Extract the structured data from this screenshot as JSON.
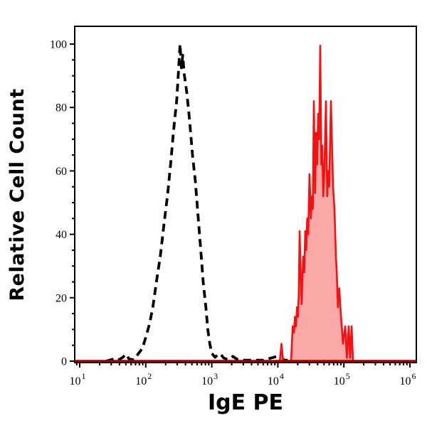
{
  "figure": {
    "background": "#ffffff"
  },
  "chart_data": {
    "type": "area",
    "subtype": "flow-cytometry-overlay-histogram",
    "title": "",
    "xlabel": "IgE PE",
    "ylabel": "Relative Cell Count",
    "x_scale": "log",
    "xlim": [
      10,
      1000000
    ],
    "ylim": [
      0,
      100
    ],
    "grid": false,
    "legend": "none",
    "x_axis": {
      "tick_base": "10",
      "tick_exponents": [
        1,
        2,
        3,
        4,
        5,
        6
      ],
      "minor_tick_multiples": [
        2,
        3,
        4,
        5,
        6,
        7,
        8,
        9
      ]
    },
    "y_axis": {
      "major_ticks": [
        0,
        20,
        40,
        60,
        80,
        100
      ],
      "minor_tick_step": 5
    },
    "colors": {
      "axis": "#000000",
      "black_curve": "#000000",
      "red_curve": "#f80f0f",
      "red_fill": "#fba8a8",
      "baseline": "#9b0000",
      "background": "#ffffff"
    },
    "series": [
      {
        "name": "black-dashed-histogram",
        "style": "dashed",
        "fill": false,
        "points": [
          [
            25,
            0
          ],
          [
            33,
            0.7
          ],
          [
            38,
            0.3
          ],
          [
            45,
            1.2
          ],
          [
            50,
            2.2
          ],
          [
            56,
            0.7
          ],
          [
            66,
            0.4
          ],
          [
            78,
            2.5
          ],
          [
            89,
            4
          ],
          [
            100,
            7.5
          ],
          [
            115,
            12
          ],
          [
            129,
            17.5
          ],
          [
            145,
            25
          ],
          [
            166,
            33
          ],
          [
            186,
            42
          ],
          [
            214,
            52.5
          ],
          [
            240,
            63
          ],
          [
            263,
            72.5
          ],
          [
            295,
            82.5
          ],
          [
            316,
            93
          ],
          [
            331,
            100
          ],
          [
            347,
            92.5
          ],
          [
            363,
            96.5
          ],
          [
            380,
            91
          ],
          [
            417,
            85
          ],
          [
            447,
            79
          ],
          [
            479,
            72
          ],
          [
            513,
            64.5
          ],
          [
            562,
            57
          ],
          [
            603,
            49
          ],
          [
            646,
            41
          ],
          [
            692,
            33
          ],
          [
            741,
            25
          ],
          [
            813,
            17
          ],
          [
            871,
            10
          ],
          [
            933,
            5.5
          ],
          [
            1000,
            2.5
          ],
          [
            1122,
            1.2
          ],
          [
            1230,
            2.0
          ],
          [
            1349,
            2.3
          ],
          [
            1514,
            1.0
          ],
          [
            1738,
            0.5
          ],
          [
            2089,
            1.5
          ],
          [
            2399,
            0.6
          ],
          [
            3236,
            0.3
          ],
          [
            6026,
            0.3
          ],
          [
            8913,
            1.3
          ],
          [
            10471,
            1.5
          ],
          [
            12589,
            0.3
          ],
          [
            25119,
            0.4
          ],
          [
            50119,
            0.3
          ],
          [
            100000,
            0.2
          ],
          [
            125893,
            0
          ]
        ]
      },
      {
        "name": "red-filled-histogram",
        "style": "solid",
        "fill": true,
        "points": [
          [
            10715,
            0
          ],
          [
            11350,
            5.5
          ],
          [
            12023,
            0
          ],
          [
            15849,
            0
          ],
          [
            16788,
            11
          ],
          [
            17579,
            9
          ],
          [
            18197,
            14
          ],
          [
            18836,
            11
          ],
          [
            19498,
            17
          ],
          [
            20184,
            14
          ],
          [
            20800,
            22
          ],
          [
            21380,
            41
          ],
          [
            22284,
            26
          ],
          [
            22909,
            18
          ],
          [
            23550,
            26
          ],
          [
            24266,
            33
          ],
          [
            25119,
            28
          ],
          [
            26002,
            41
          ],
          [
            26915,
            35
          ],
          [
            27861,
            45
          ],
          [
            28840,
            40
          ],
          [
            30200,
            59
          ],
          [
            31623,
            45
          ],
          [
            32735,
            52
          ],
          [
            33884,
            48
          ],
          [
            35075,
            82
          ],
          [
            36728,
            53
          ],
          [
            38019,
            72
          ],
          [
            39355,
            62
          ],
          [
            40738,
            78
          ],
          [
            42170,
            70
          ],
          [
            43853,
            99.5
          ],
          [
            45499,
            62
          ],
          [
            46989,
            68
          ],
          [
            48753,
            52
          ],
          [
            50699,
            60
          ],
          [
            53456,
            82
          ],
          [
            55976,
            52
          ],
          [
            57810,
            60
          ],
          [
            59979,
            55
          ],
          [
            63680,
            82
          ],
          [
            68549,
            55
          ],
          [
            72111,
            48
          ],
          [
            75683,
            33
          ],
          [
            77625,
            29
          ],
          [
            81283,
            17
          ],
          [
            85114,
            23
          ],
          [
            89950,
            15
          ],
          [
            97051,
            5.5
          ],
          [
            104713,
            11
          ],
          [
            110917,
            1
          ],
          [
            118304,
            11
          ],
          [
            124451,
            1
          ],
          [
            130917,
            11
          ],
          [
            137404,
            0
          ],
          [
            1200000,
            0
          ]
        ]
      }
    ]
  }
}
